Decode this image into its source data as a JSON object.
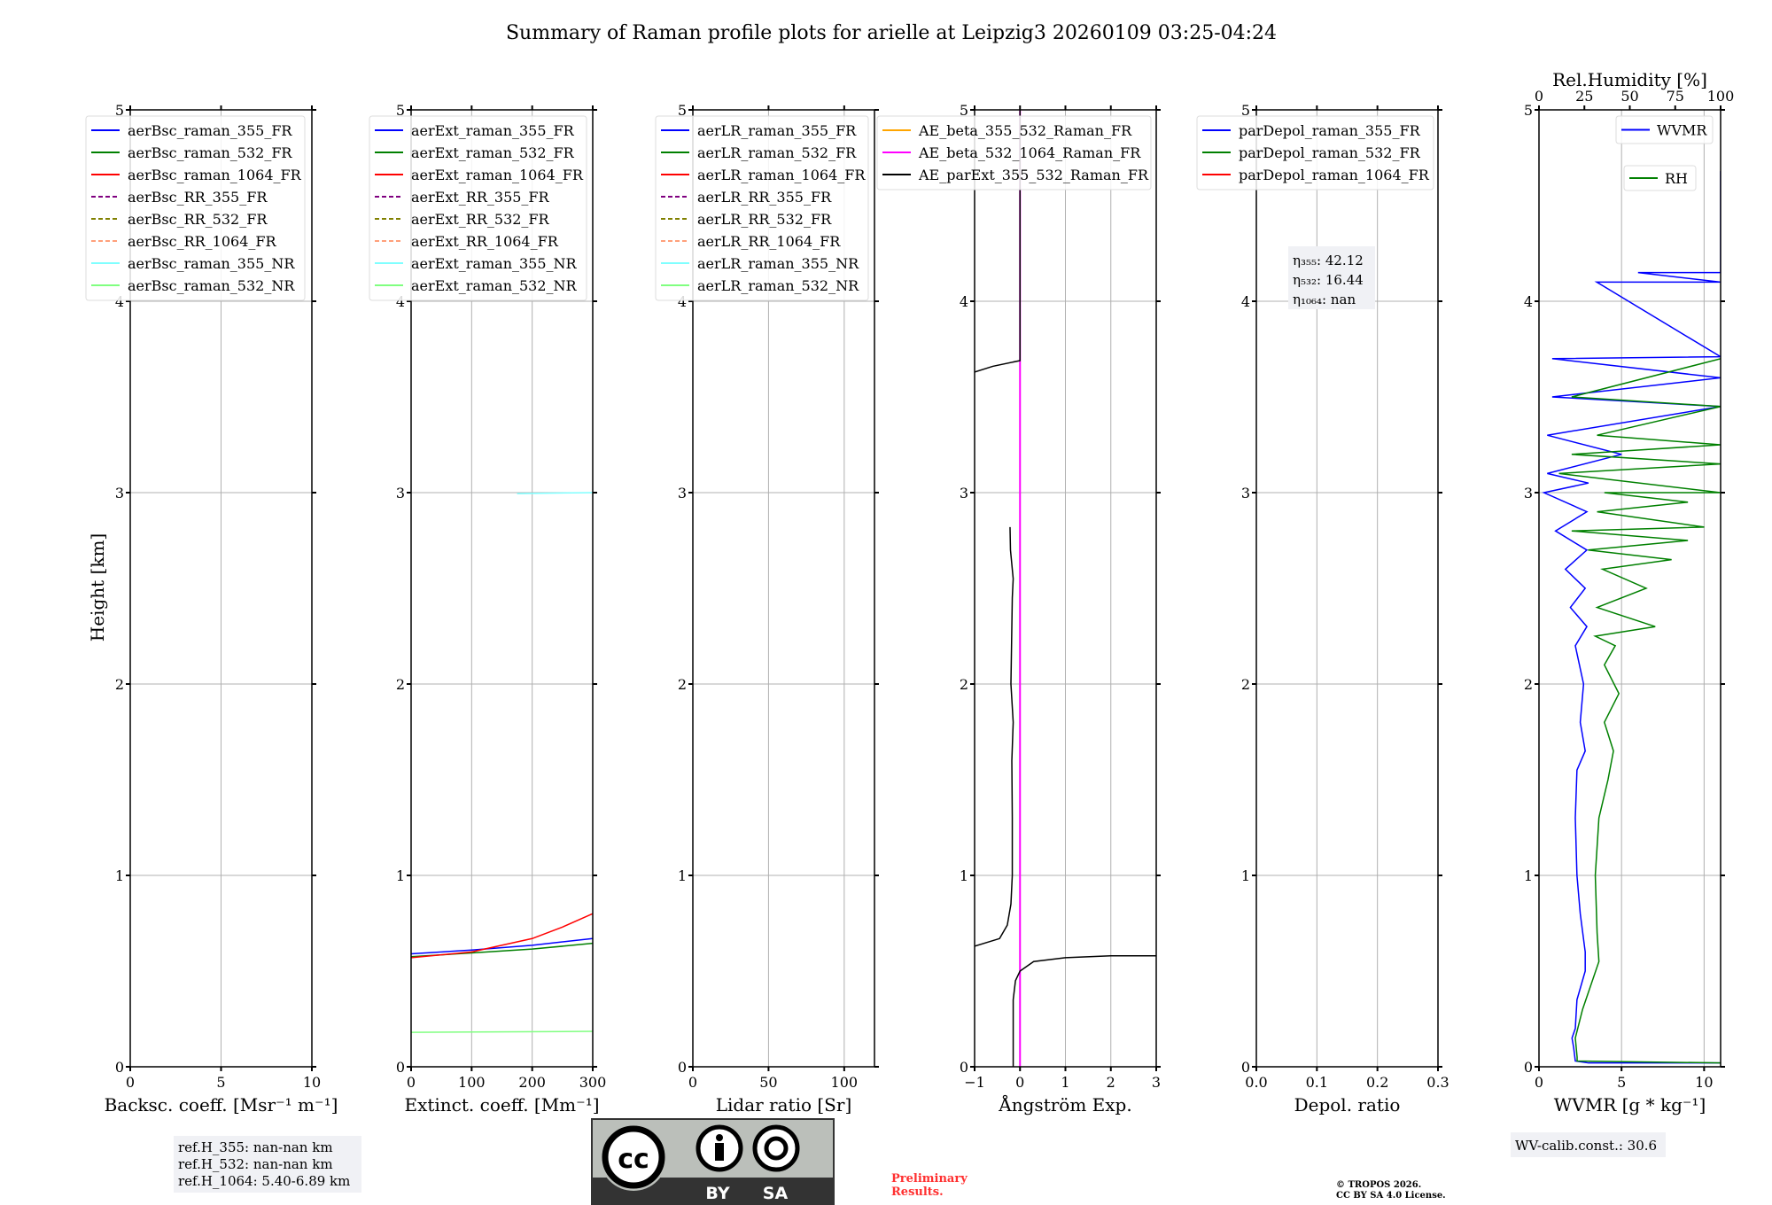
{
  "title": "Summary of Raman profile plots for arielle at Leipzig3 20260109 03:25-04:24",
  "ylabel": "Height [km]",
  "y_ticks": [
    "0",
    "1",
    "2",
    "3",
    "4",
    "5"
  ],
  "chart_data": [
    {
      "type": "line",
      "xlabel": "Backsc. coeff. [Msr⁻¹ m⁻¹]",
      "xlim": [
        0,
        10
      ],
      "ylim": [
        0,
        5
      ],
      "x_ticks": [
        0,
        5,
        10
      ],
      "x_tick_labels": [
        "0",
        "5",
        "10"
      ],
      "grid": true,
      "legend_placement": "upper-left",
      "series": [
        {
          "name": "aerBsc_raman_355_FR",
          "color": "#0000ff",
          "dash": false,
          "points": []
        },
        {
          "name": "aerBsc_raman_532_FR",
          "color": "#008000",
          "dash": false,
          "points": []
        },
        {
          "name": "aerBsc_raman_1064_FR",
          "color": "#ff0000",
          "dash": false,
          "points": []
        },
        {
          "name": "aerBsc_RR_355_FR",
          "color": "#800080",
          "dash": true,
          "points": []
        },
        {
          "name": "aerBsc_RR_532_FR",
          "color": "#808000",
          "dash": true,
          "points": []
        },
        {
          "name": "aerBsc_RR_1064_FR",
          "color": "#ffa07a",
          "dash": true,
          "points": []
        },
        {
          "name": "aerBsc_raman_355_NR",
          "color": "#80ffff",
          "dash": false,
          "points": []
        },
        {
          "name": "aerBsc_raman_532_NR",
          "color": "#80ff80",
          "dash": false,
          "points": []
        }
      ]
    },
    {
      "type": "line",
      "xlabel": "Extinct. coeff. [Mm⁻¹]",
      "xlim": [
        0,
        300
      ],
      "ylim": [
        0,
        5
      ],
      "x_ticks": [
        0,
        100,
        200,
        300
      ],
      "x_tick_labels": [
        "0",
        "100",
        "200",
        "300"
      ],
      "grid": true,
      "legend_placement": "upper-left",
      "series": [
        {
          "name": "aerExt_raman_355_FR",
          "color": "#0000ff",
          "dash": false,
          "points": [
            [
              0,
              0.59
            ],
            [
              100,
              0.61
            ],
            [
              200,
              0.635
            ],
            [
              300,
              0.67
            ]
          ]
        },
        {
          "name": "aerExt_raman_532_FR",
          "color": "#008000",
          "dash": false,
          "points": [
            [
              0,
              0.575
            ],
            [
              100,
              0.595
            ],
            [
              200,
              0.615
            ],
            [
              300,
              0.645
            ]
          ]
        },
        {
          "name": "aerExt_raman_1064_FR",
          "color": "#ff0000",
          "dash": false,
          "points": [
            [
              0,
              0.57
            ],
            [
              100,
              0.6
            ],
            [
              200,
              0.67
            ],
            [
              250,
              0.73
            ],
            [
              300,
              0.8
            ]
          ]
        },
        {
          "name": "aerExt_RR_355_FR",
          "color": "#800080",
          "dash": true,
          "points": []
        },
        {
          "name": "aerExt_RR_532_FR",
          "color": "#808000",
          "dash": true,
          "points": []
        },
        {
          "name": "aerExt_RR_1064_FR",
          "color": "#ffa07a",
          "dash": true,
          "points": []
        },
        {
          "name": "aerExt_raman_355_NR",
          "color": "#80ffff",
          "dash": false,
          "points": [
            [
              175,
              2.995
            ],
            [
              300,
              3.0
            ]
          ]
        },
        {
          "name": "aerExt_raman_532_NR",
          "color": "#80ff80",
          "dash": false,
          "points": [
            [
              0,
              0.18
            ],
            [
              300,
              0.185
            ]
          ]
        }
      ]
    },
    {
      "type": "line",
      "xlabel": "Lidar ratio [Sr]",
      "xlim": [
        0,
        120
      ],
      "ylim": [
        0,
        5
      ],
      "x_ticks": [
        0,
        50,
        100
      ],
      "x_tick_labels": [
        "0",
        "50",
        "100"
      ],
      "grid": true,
      "legend_placement": "upper-left",
      "series": [
        {
          "name": "aerLR_raman_355_FR",
          "color": "#0000ff",
          "dash": false,
          "points": []
        },
        {
          "name": "aerLR_raman_532_FR",
          "color": "#008000",
          "dash": false,
          "points": []
        },
        {
          "name": "aerLR_raman_1064_FR",
          "color": "#ff0000",
          "dash": false,
          "points": []
        },
        {
          "name": "aerLR_RR_355_FR",
          "color": "#800080",
          "dash": true,
          "points": []
        },
        {
          "name": "aerLR_RR_532_FR",
          "color": "#808000",
          "dash": true,
          "points": []
        },
        {
          "name": "aerLR_RR_1064_FR",
          "color": "#ffa07a",
          "dash": true,
          "points": []
        },
        {
          "name": "aerLR_raman_355_NR",
          "color": "#80ffff",
          "dash": false,
          "points": []
        },
        {
          "name": "aerLR_raman_532_NR",
          "color": "#80ff80",
          "dash": false,
          "points": []
        }
      ]
    },
    {
      "type": "line",
      "xlabel": "Ångström Exp.",
      "xlim": [
        -1,
        3
      ],
      "ylim": [
        0,
        5
      ],
      "x_ticks": [
        -1,
        0,
        1,
        2,
        3
      ],
      "x_tick_labels": [
        "−1",
        "0",
        "1",
        "2",
        "3"
      ],
      "grid": true,
      "legend_placement": "upper-left",
      "series": [
        {
          "name": "AE_beta_355_532_Raman_FR",
          "color": "#ffa500",
          "dash": false,
          "points": []
        },
        {
          "name": "AE_beta_532_1064_Raman_FR",
          "color": "#ff00ff",
          "dash": false,
          "points": [
            [
              0,
              0
            ],
            [
              0,
              5
            ]
          ]
        },
        {
          "name": "AE_parExt_355_532_Raman_FR",
          "color": "#000000",
          "dash": false,
          "segments": [
            [
              [
                -1,
                3.63
              ],
              [
                -0.6,
                3.66
              ],
              [
                0,
                3.69
              ],
              [
                0,
                5
              ]
            ],
            [
              [
                -0.22,
                2.82
              ],
              [
                -0.21,
                2.7
              ],
              [
                -0.17,
                2.6
              ],
              [
                -0.15,
                2.55
              ],
              [
                -0.17,
                2.45
              ],
              [
                -0.18,
                2.3
              ],
              [
                -0.2,
                2.0
              ],
              [
                -0.15,
                1.8
              ],
              [
                -0.18,
                1.6
              ],
              [
                -0.17,
                1.3
              ],
              [
                -0.17,
                1.0
              ],
              [
                -0.2,
                0.85
              ],
              [
                -0.28,
                0.74
              ],
              [
                -0.45,
                0.67
              ],
              [
                -1,
                0.63
              ]
            ],
            [
              [
                -0.15,
                0
              ],
              [
                -0.15,
                0.35
              ],
              [
                -0.1,
                0.45
              ],
              [
                0,
                0.5
              ],
              [
                0.3,
                0.55
              ],
              [
                1,
                0.57
              ],
              [
                2,
                0.58
              ],
              [
                3,
                0.58
              ]
            ]
          ]
        }
      ]
    },
    {
      "type": "line",
      "xlabel": "Depol. ratio",
      "xlim": [
        0,
        0.3
      ],
      "ylim": [
        0,
        5
      ],
      "x_ticks": [
        0,
        0.1,
        0.2,
        0.3
      ],
      "x_tick_labels": [
        "0.0",
        "0.1",
        "0.2",
        "0.3"
      ],
      "grid": true,
      "legend_placement": "upper-left",
      "series": [
        {
          "name": "parDepol_raman_355_FR",
          "color": "#0000ff",
          "dash": false,
          "points": []
        },
        {
          "name": "parDepol_raman_532_FR",
          "color": "#008000",
          "dash": false,
          "points": []
        },
        {
          "name": "parDepol_raman_1064_FR",
          "color": "#ff0000",
          "dash": false,
          "points": []
        }
      ],
      "annotation": [
        "η₃₅₅: 42.12",
        "η₅₃₂: 16.44",
        "η₁₀₆₄: nan"
      ]
    },
    {
      "type": "line",
      "xlabel": "WVMR [g * kg⁻¹]",
      "xlim": [
        0,
        11
      ],
      "ylim": [
        0,
        5
      ],
      "x_ticks": [
        0,
        5,
        10
      ],
      "x_tick_labels": [
        "0",
        "5",
        "10"
      ],
      "top_xlabel": "Rel.Humidity [%]",
      "top_xlim": [
        0,
        100
      ],
      "top_x_ticks": [
        0,
        25,
        50,
        75,
        100
      ],
      "top_x_tick_labels": [
        "0",
        "25",
        "50",
        "75",
        "100"
      ],
      "grid": true,
      "series": [
        {
          "name": "WVMR",
          "color": "#0000ff",
          "axis": "bottom",
          "legend_placement": "upper-right",
          "points": [
            [
              11,
              0.02
            ],
            [
              3,
              0.02
            ],
            [
              2.2,
              0.03
            ],
            [
              2.1,
              0.1
            ],
            [
              2.0,
              0.15
            ],
            [
              2.2,
              0.2
            ],
            [
              2.3,
              0.35
            ],
            [
              2.8,
              0.5
            ],
            [
              2.8,
              0.6
            ],
            [
              2.5,
              0.8
            ],
            [
              2.3,
              1.0
            ],
            [
              2.2,
              1.3
            ],
            [
              2.3,
              1.55
            ],
            [
              2.8,
              1.65
            ],
            [
              2.5,
              1.8
            ],
            [
              2.7,
              2.0
            ],
            [
              2.2,
              2.2
            ],
            [
              2.9,
              2.3
            ],
            [
              1.9,
              2.4
            ],
            [
              2.8,
              2.5
            ],
            [
              1.6,
              2.6
            ],
            [
              2.9,
              2.7
            ],
            [
              1.0,
              2.8
            ],
            [
              2.9,
              2.9
            ],
            [
              0.3,
              3.0
            ],
            [
              3,
              3.05
            ],
            [
              0.5,
              3.1
            ],
            [
              5,
              3.2
            ],
            [
              0.5,
              3.3
            ],
            [
              11,
              3.45
            ],
            [
              0.8,
              3.5
            ],
            [
              11,
              3.6
            ],
            [
              0.8,
              3.7
            ],
            [
              11,
              3.71
            ],
            [
              3.5,
              4.1
            ],
            [
              11,
              4.1
            ],
            [
              6,
              4.15
            ],
            [
              11,
              4.15
            ],
            [
              11,
              4.68
            ]
          ]
        },
        {
          "name": "RH",
          "color": "#008000",
          "axis": "top",
          "legend_placement": "upper-right",
          "points": [
            [
              100,
              0.02
            ],
            [
              21,
              0.03
            ],
            [
              21,
              0.05
            ],
            [
              20,
              0.15
            ],
            [
              24,
              0.3
            ],
            [
              33,
              0.55
            ],
            [
              32,
              0.7
            ],
            [
              31,
              1.0
            ],
            [
              33,
              1.3
            ],
            [
              38,
              1.5
            ],
            [
              41,
              1.65
            ],
            [
              36,
              1.8
            ],
            [
              44,
              1.95
            ],
            [
              36,
              2.1
            ],
            [
              42,
              2.2
            ],
            [
              31,
              2.25
            ],
            [
              64,
              2.3
            ],
            [
              32,
              2.4
            ],
            [
              59,
              2.5
            ],
            [
              35,
              2.6
            ],
            [
              73,
              2.65
            ],
            [
              27,
              2.7
            ],
            [
              82,
              2.75
            ],
            [
              18,
              2.8
            ],
            [
              91,
              2.82
            ],
            [
              32,
              2.9
            ],
            [
              82,
              2.95
            ],
            [
              36,
              3.0
            ],
            [
              100,
              3.0
            ],
            [
              11,
              3.1
            ],
            [
              100,
              3.15
            ],
            [
              18,
              3.2
            ],
            [
              100,
              3.25
            ],
            [
              32,
              3.3
            ],
            [
              100,
              3.45
            ],
            [
              18,
              3.5
            ],
            [
              100,
              3.7
            ]
          ]
        }
      ]
    }
  ],
  "footer": {
    "ref_heights": [
      "ref.H_355: nan-nan km",
      "ref.H_532: nan-nan km",
      "ref.H_1064: 5.40-6.89 km"
    ],
    "license_logo": {
      "cc": "cc",
      "by": "BY",
      "sa": "SA"
    },
    "preliminary": [
      "Preliminary",
      "Results."
    ],
    "copyright": [
      "© TROPOS 2026.",
      "CC BY SA 4.0 License."
    ],
    "wv_calib": "WV-calib.const.: 30.6"
  }
}
